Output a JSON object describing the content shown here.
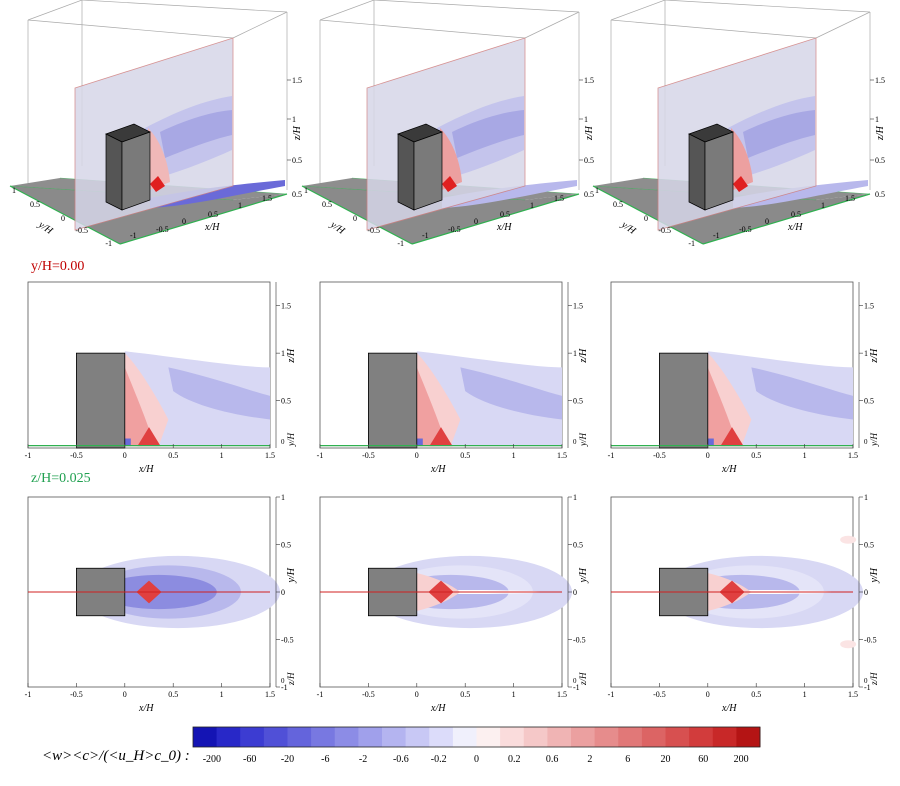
{
  "row_labels": {
    "vertical_plane": "y/H=0.00",
    "horizontal_plane": "z/H=0.025",
    "vertical_color": "#c00000",
    "horizontal_color": "#20a050"
  },
  "axes": {
    "x_label": "x/H",
    "y_label": "y/H",
    "z_label": "z/H",
    "x_ticks": [
      "-1",
      "-0.5",
      "0",
      "0.5",
      "1",
      "1.5"
    ],
    "z_ticks": [
      "0.5",
      "1",
      "1.5"
    ],
    "y_ticks": [
      "-1",
      "-0.5",
      "0",
      "0.5",
      "1"
    ],
    "edge_tick_mid": "0",
    "edge_tick_bottom": "0.5"
  },
  "colorbar": {
    "label": "<w><c>/(<u_H>c_0) :",
    "tick_labels": [
      "-200",
      "-60",
      "-20",
      "-6",
      "-2",
      "-0.6",
      "-0.2",
      "0",
      "0.2",
      "0.6",
      "2",
      "6",
      "20",
      "60",
      "200"
    ],
    "colors": [
      "#1414b4",
      "#2828c8",
      "#3c3cd2",
      "#5050d7",
      "#6464dc",
      "#7878e1",
      "#8c8ce6",
      "#a0a0eb",
      "#b4b4f0",
      "#c8c8f5",
      "#dcdcfa",
      "#f0f0fc",
      "#fcf0f0",
      "#fadcdc",
      "#f5c8c8",
      "#f0b4b4",
      "#eba0a0",
      "#e68c8c",
      "#e17878",
      "#dc6464",
      "#d75050",
      "#d23c3c",
      "#c82828",
      "#b41414"
    ]
  }
}
